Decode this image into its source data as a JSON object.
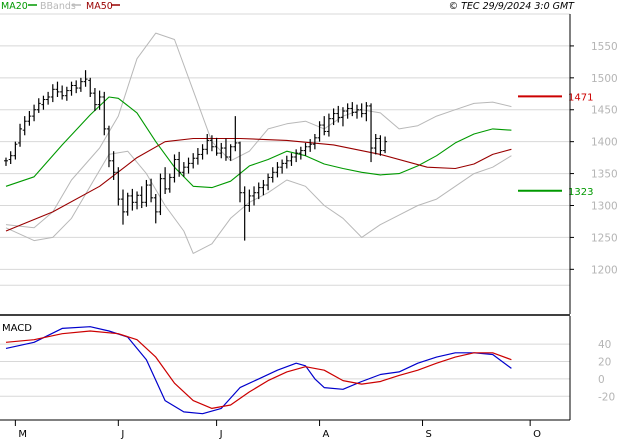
{
  "header": {
    "legend": [
      {
        "label": "MA20",
        "color": "#009900"
      },
      {
        "label": "BBands",
        "color": "#b8b8b8"
      },
      {
        "label": "MA50",
        "color": "#990000"
      }
    ],
    "stamp": "© TEC 29/9/2024 3:0 GMT"
  },
  "macd_panel": {
    "title": "MACD"
  },
  "chart_data": [
    {
      "type": "candlestick",
      "panel": "price",
      "x_ticks": [
        "M",
        "J",
        "J",
        "A",
        "S",
        "O"
      ],
      "y_ticks": [
        1200,
        1250,
        1300,
        1350,
        1400,
        1450,
        1500,
        1550
      ],
      "ylim": [
        1130,
        1600
      ],
      "grid": true,
      "annotations": [
        {
          "label": "1471",
          "value": 1471,
          "color": "#cc0000"
        },
        {
          "label": "1323",
          "value": 1323,
          "color": "#009900"
        }
      ],
      "ohlc": [
        [
          1370,
          1375,
          1362,
          1370
        ],
        [
          1372,
          1385,
          1365,
          1378
        ],
        [
          1378,
          1400,
          1372,
          1396
        ],
        [
          1398,
          1428,
          1392,
          1420
        ],
        [
          1418,
          1440,
          1410,
          1432
        ],
        [
          1432,
          1448,
          1425,
          1440
        ],
        [
          1440,
          1458,
          1432,
          1450
        ],
        [
          1450,
          1468,
          1445,
          1460
        ],
        [
          1458,
          1472,
          1450,
          1466
        ],
        [
          1466,
          1478,
          1458,
          1470
        ],
        [
          1470,
          1490,
          1462,
          1482
        ],
        [
          1482,
          1494,
          1470,
          1478
        ],
        [
          1478,
          1488,
          1466,
          1472
        ],
        [
          1472,
          1486,
          1464,
          1480
        ],
        [
          1480,
          1494,
          1472,
          1488
        ],
        [
          1488,
          1496,
          1476,
          1484
        ],
        [
          1484,
          1500,
          1478,
          1494
        ],
        [
          1494,
          1512,
          1486,
          1498
        ],
        [
          1496,
          1500,
          1470,
          1476
        ],
        [
          1476,
          1484,
          1448,
          1458
        ],
        [
          1458,
          1480,
          1450,
          1470
        ],
        [
          1470,
          1478,
          1410,
          1420
        ],
        [
          1420,
          1425,
          1360,
          1370
        ],
        [
          1370,
          1385,
          1340,
          1352
        ],
        [
          1352,
          1360,
          1300,
          1310
        ],
        [
          1310,
          1325,
          1270,
          1290
        ],
        [
          1290,
          1320,
          1284,
          1315
        ],
        [
          1315,
          1326,
          1292,
          1305
        ],
        [
          1305,
          1322,
          1294,
          1316
        ],
        [
          1316,
          1330,
          1296,
          1305
        ],
        [
          1305,
          1340,
          1298,
          1332
        ],
        [
          1332,
          1342,
          1305,
          1312
        ],
        [
          1312,
          1318,
          1272,
          1290
        ],
        [
          1290,
          1350,
          1285,
          1342
        ],
        [
          1342,
          1360,
          1318,
          1326
        ],
        [
          1326,
          1350,
          1320,
          1344
        ],
        [
          1344,
          1380,
          1336,
          1372
        ],
        [
          1372,
          1384,
          1345,
          1352
        ],
        [
          1352,
          1368,
          1345,
          1360
        ],
        [
          1360,
          1375,
          1350,
          1366
        ],
        [
          1366,
          1382,
          1358,
          1374
        ],
        [
          1374,
          1390,
          1364,
          1380
        ],
        [
          1380,
          1396,
          1372,
          1388
        ],
        [
          1388,
          1412,
          1380,
          1402
        ],
        [
          1402,
          1410,
          1385,
          1392
        ],
        [
          1392,
          1406,
          1378,
          1382
        ],
        [
          1382,
          1398,
          1374,
          1390
        ],
        [
          1390,
          1405,
          1370,
          1376
        ],
        [
          1376,
          1396,
          1370,
          1392
        ],
        [
          1392,
          1440,
          1385,
          1398
        ],
        [
          1398,
          1400,
          1305,
          1320
        ],
        [
          1320,
          1330,
          1245,
          1300
        ],
        [
          1300,
          1325,
          1290,
          1315
        ],
        [
          1315,
          1330,
          1300,
          1320
        ],
        [
          1320,
          1336,
          1310,
          1328
        ],
        [
          1328,
          1340,
          1316,
          1332
        ],
        [
          1332,
          1350,
          1324,
          1344
        ],
        [
          1344,
          1360,
          1336,
          1352
        ],
        [
          1352,
          1368,
          1344,
          1360
        ],
        [
          1360,
          1372,
          1350,
          1366
        ],
        [
          1366,
          1378,
          1358,
          1370
        ],
        [
          1370,
          1382,
          1362,
          1376
        ],
        [
          1376,
          1388,
          1368,
          1382
        ],
        [
          1382,
          1392,
          1372,
          1386
        ],
        [
          1386,
          1398,
          1378,
          1392
        ],
        [
          1392,
          1404,
          1384,
          1396
        ],
        [
          1396,
          1412,
          1388,
          1406
        ],
        [
          1406,
          1432,
          1400,
          1426
        ],
        [
          1426,
          1440,
          1410,
          1416
        ],
        [
          1416,
          1444,
          1408,
          1436
        ],
        [
          1436,
          1452,
          1426,
          1444
        ],
        [
          1444,
          1456,
          1430,
          1438
        ],
        [
          1438,
          1454,
          1424,
          1448
        ],
        [
          1448,
          1460,
          1436,
          1452
        ],
        [
          1452,
          1462,
          1440,
          1446
        ],
        [
          1446,
          1458,
          1436,
          1450
        ],
        [
          1450,
          1460,
          1438,
          1444
        ],
        [
          1444,
          1462,
          1432,
          1456
        ],
        [
          1456,
          1460,
          1368,
          1390
        ],
        [
          1390,
          1412,
          1380,
          1405
        ],
        [
          1405,
          1410,
          1378,
          1386
        ],
        [
          1386,
          1408,
          1382,
          1400
        ]
      ],
      "series": [
        {
          "name": "MA20",
          "color": "#009900",
          "values": [
            [
              0,
              1330
            ],
            [
              6,
              1345
            ],
            [
              12,
              1395
            ],
            [
              18,
              1442
            ],
            [
              22,
              1470
            ],
            [
              24,
              1468
            ],
            [
              28,
              1445
            ],
            [
              32,
              1400
            ],
            [
              36,
              1360
            ],
            [
              40,
              1330
            ],
            [
              44,
              1328
            ],
            [
              48,
              1338
            ],
            [
              52,
              1362
            ],
            [
              56,
              1372
            ],
            [
              60,
              1385
            ],
            [
              64,
              1378
            ],
            [
              68,
              1365
            ],
            [
              72,
              1358
            ],
            [
              76,
              1352
            ],
            [
              80,
              1348
            ],
            [
              84,
              1350
            ],
            [
              88,
              1362
            ],
            [
              92,
              1378
            ],
            [
              96,
              1398
            ],
            [
              100,
              1412
            ],
            [
              104,
              1420
            ],
            [
              108,
              1418
            ]
          ]
        },
        {
          "name": "MA50",
          "color": "#990000",
          "values": [
            [
              0,
              1260
            ],
            [
              10,
              1290
            ],
            [
              20,
              1330
            ],
            [
              28,
              1375
            ],
            [
              34,
              1400
            ],
            [
              40,
              1405
            ],
            [
              50,
              1405
            ],
            [
              60,
              1402
            ],
            [
              70,
              1395
            ],
            [
              80,
              1380
            ],
            [
              90,
              1360
            ],
            [
              96,
              1358
            ],
            [
              100,
              1365
            ],
            [
              104,
              1380
            ],
            [
              108,
              1388
            ]
          ]
        },
        {
          "name": "BBands",
          "color": "#b8b8b8",
          "values": [
            [
              0,
              1270
            ],
            [
              6,
              1265
            ],
            [
              10,
              1290
            ],
            [
              14,
              1340
            ],
            [
              20,
              1390
            ],
            [
              24,
              1440
            ],
            [
              28,
              1530
            ],
            [
              32,
              1570
            ],
            [
              36,
              1560
            ],
            [
              40,
              1480
            ],
            [
              44,
              1400
            ],
            [
              48,
              1370
            ],
            [
              52,
              1385
            ],
            [
              56,
              1420
            ],
            [
              60,
              1428
            ],
            [
              64,
              1432
            ],
            [
              68,
              1420
            ],
            [
              72,
              1440
            ],
            [
              76,
              1450
            ],
            [
              80,
              1445
            ],
            [
              84,
              1420
            ],
            [
              88,
              1425
            ],
            [
              92,
              1440
            ],
            [
              96,
              1450
            ],
            [
              100,
              1460
            ],
            [
              104,
              1462
            ],
            [
              108,
              1455
            ]
          ]
        },
        {
          "name": "BBands",
          "color": "#b8b8b8",
          "values": [
            [
              0,
              1265
            ],
            [
              6,
              1245
            ],
            [
              10,
              1250
            ],
            [
              14,
              1280
            ],
            [
              18,
              1330
            ],
            [
              22,
              1380
            ],
            [
              26,
              1385
            ],
            [
              30,
              1350
            ],
            [
              34,
              1300
            ],
            [
              38,
              1260
            ],
            [
              40,
              1225
            ],
            [
              44,
              1240
            ],
            [
              48,
              1280
            ],
            [
              52,
              1305
            ],
            [
              56,
              1320
            ],
            [
              60,
              1340
            ],
            [
              64,
              1330
            ],
            [
              68,
              1300
            ],
            [
              72,
              1280
            ],
            [
              76,
              1250
            ],
            [
              80,
              1270
            ],
            [
              84,
              1285
            ],
            [
              88,
              1300
            ],
            [
              92,
              1310
            ],
            [
              96,
              1330
            ],
            [
              100,
              1350
            ],
            [
              104,
              1360
            ],
            [
              108,
              1378
            ]
          ]
        }
      ]
    },
    {
      "type": "line",
      "panel": "macd",
      "y_ticks": [
        "40",
        "20",
        "0",
        "-20"
      ],
      "ylim": [
        -45,
        70
      ],
      "series": [
        {
          "name": "MACD",
          "color": "#0000cc",
          "values": [
            [
              0,
              35
            ],
            [
              6,
              42
            ],
            [
              12,
              58
            ],
            [
              18,
              60
            ],
            [
              22,
              55
            ],
            [
              26,
              48
            ],
            [
              30,
              22
            ],
            [
              34,
              -25
            ],
            [
              38,
              -38
            ],
            [
              42,
              -40
            ],
            [
              46,
              -34
            ],
            [
              50,
              -10
            ],
            [
              54,
              0
            ],
            [
              58,
              10
            ],
            [
              62,
              18
            ],
            [
              64,
              15
            ],
            [
              66,
              0
            ],
            [
              68,
              -10
            ],
            [
              72,
              -12
            ],
            [
              76,
              -3
            ],
            [
              80,
              5
            ],
            [
              84,
              8
            ],
            [
              88,
              18
            ],
            [
              92,
              25
            ],
            [
              96,
              30
            ],
            [
              100,
              30
            ],
            [
              104,
              28
            ],
            [
              108,
              12
            ]
          ]
        },
        {
          "name": "Signal",
          "color": "#cc0000",
          "values": [
            [
              0,
              42
            ],
            [
              6,
              45
            ],
            [
              12,
              52
            ],
            [
              18,
              55
            ],
            [
              24,
              52
            ],
            [
              28,
              45
            ],
            [
              32,
              25
            ],
            [
              36,
              -5
            ],
            [
              40,
              -25
            ],
            [
              44,
              -34
            ],
            [
              48,
              -30
            ],
            [
              52,
              -15
            ],
            [
              56,
              -2
            ],
            [
              60,
              8
            ],
            [
              64,
              14
            ],
            [
              68,
              10
            ],
            [
              72,
              -2
            ],
            [
              76,
              -6
            ],
            [
              80,
              -3
            ],
            [
              84,
              4
            ],
            [
              88,
              10
            ],
            [
              92,
              18
            ],
            [
              96,
              25
            ],
            [
              100,
              30
            ],
            [
              104,
              30
            ],
            [
              108,
              22
            ]
          ]
        }
      ]
    }
  ]
}
